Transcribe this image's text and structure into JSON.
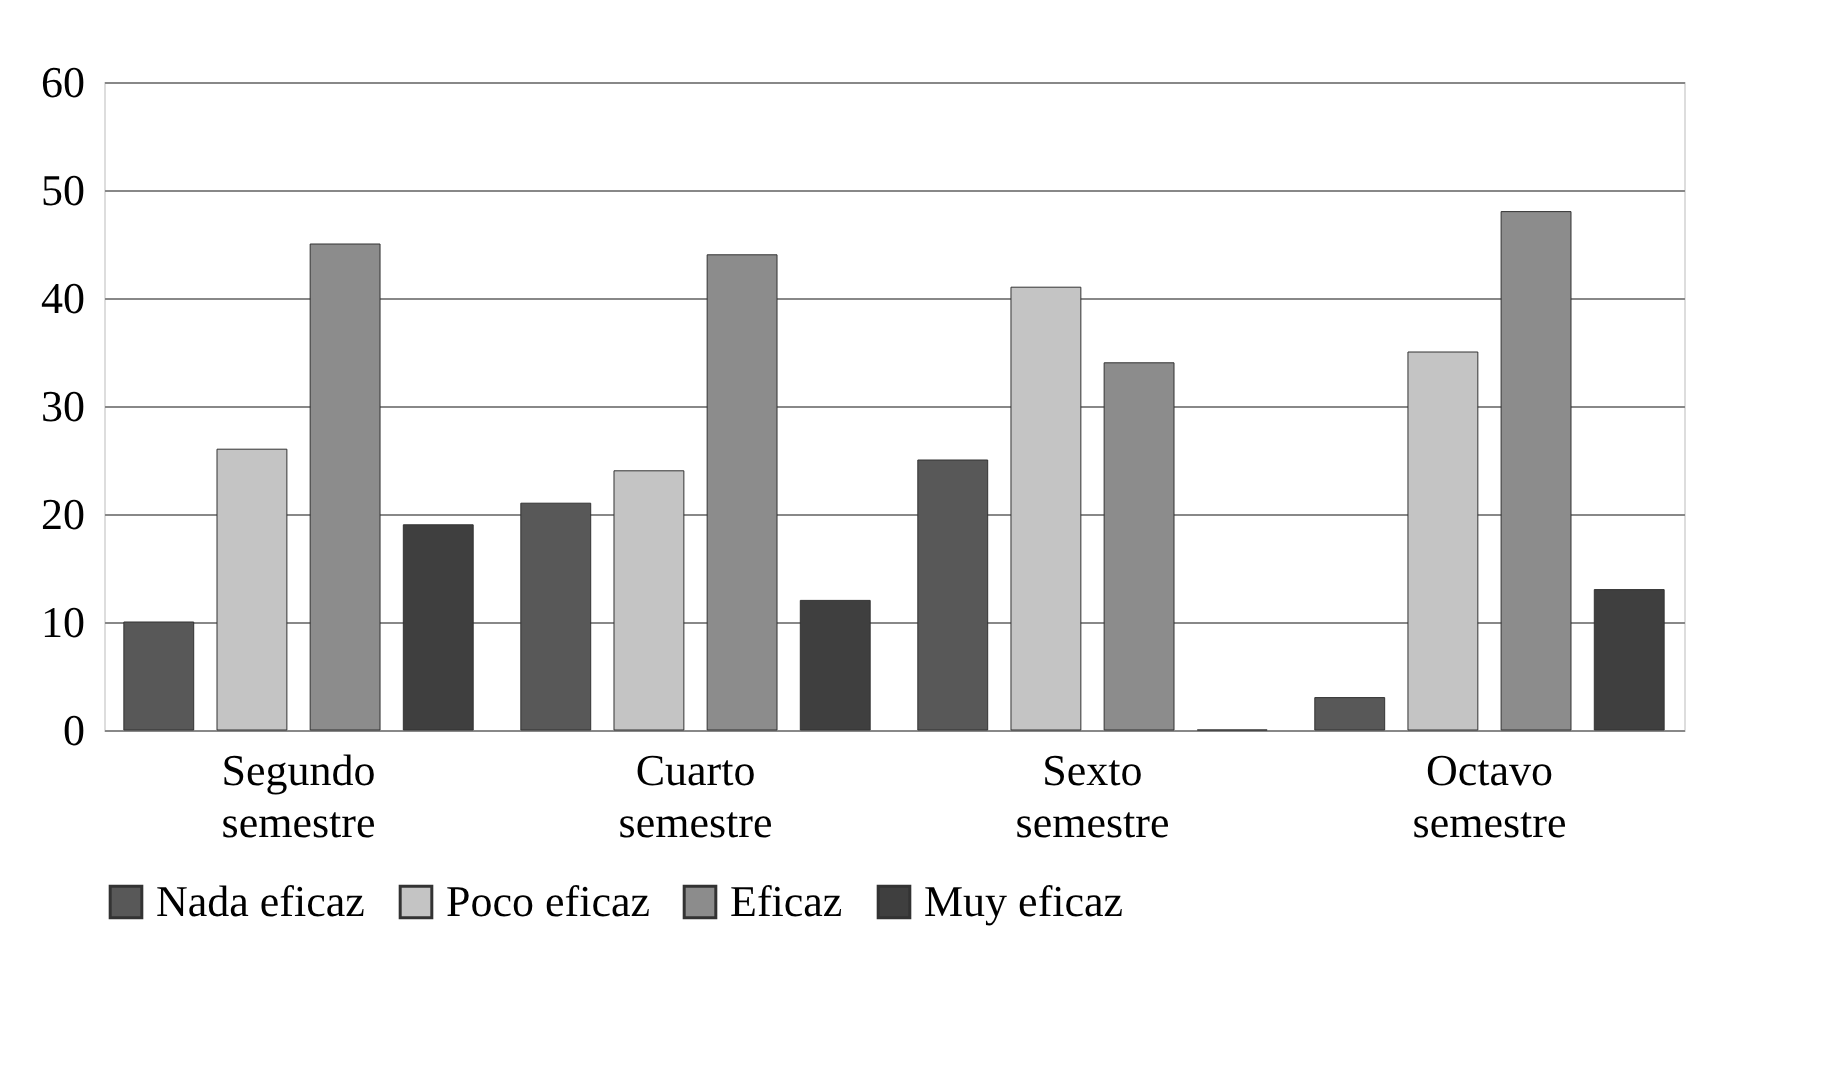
{
  "chart_data": {
    "type": "bar",
    "categories": [
      "Segundo semestre",
      "Cuarto semestre",
      "Sexto semestre",
      "Octavo semestre"
    ],
    "series": [
      {
        "name": "Nada eficaz",
        "color": "#585858",
        "values": [
          10,
          21,
          25,
          3
        ]
      },
      {
        "name": "Poco eficaz",
        "color": "#c4c4c4",
        "values": [
          26,
          24,
          41,
          35
        ]
      },
      {
        "name": "Eficaz",
        "color": "#8c8c8c",
        "values": [
          45,
          44,
          34,
          48
        ]
      },
      {
        "name": "Muy eficaz",
        "color": "#3f3f3f",
        "values": [
          19,
          12,
          0,
          13
        ]
      }
    ],
    "ylim": [
      0,
      60
    ],
    "yticks": [
      0,
      10,
      20,
      30,
      40,
      50,
      60
    ],
    "grid": "y",
    "legend": "bottom"
  }
}
